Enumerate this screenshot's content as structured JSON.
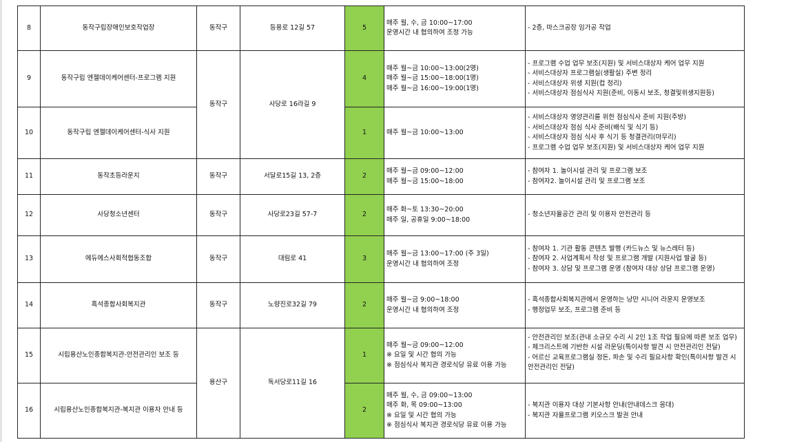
{
  "accent_color": "#92d050",
  "rows": [
    {
      "no": "8",
      "name": "동작구립장애인보호작업장",
      "district": "동작구",
      "address": "등용로 12길 57",
      "count": "5",
      "hours": [
        "매주 월, 수, 금 10:00~17:00",
        "운영시간 내 협의하여 조정 가능"
      ],
      "tasks": [
        "- 2층, 마스크공장 임가공 작업"
      ]
    },
    {
      "no": "9",
      "name": "동작구립 엔젤데이케어센터-프로그램 지원",
      "district": "동작구",
      "address": "사당로 16라길 9",
      "count": "4",
      "hours": [
        "매주 월~금 10:00~13:00(2명)",
        "매주 월~금 15:00~18:00(1명)",
        "매주 월~금 16:00~19:00(1명)"
      ],
      "tasks": [
        "- 프로그램 수업 업무 보조(지원) 및 서비스대상자 케어 업무 지원",
        "- 서비스대상자 프로그램실(생활실) 주변 정리",
        "- 서비스대상자 위생 지원(컵 정리)",
        "- 서비스대상자 점심식사 지원(준비, 이동시 보조, 청결및위생지원등)"
      ]
    },
    {
      "no": "10",
      "name": "동작구립 엔젤데이케어센터-식사 지원",
      "count": "1",
      "hours": [
        "매주 월~금 10:00~13:00"
      ],
      "tasks": [
        "- 서비스대상자 영양관리를 위한 점심식사 준비 지원(주방)",
        "- 서비스대상자 점심 식사 준비(배식 및  식기 등)",
        "- 서비스대상자 점심 식사 후 식기 등 청결관리(마무리)",
        "- 프로그램 수업 업무 보조(지원) 및 서비스대상자 케어 업무 지원"
      ]
    },
    {
      "no": "11",
      "name": "동작초등라운지",
      "district": "동작구",
      "address": "서달로15길 13, 2층",
      "count": "2",
      "hours": [
        "매주 월~금 09:00~12:00",
        "매주 월~금 15:00~18:00"
      ],
      "tasks": [
        "- 참여자 1. 놀이시설 관리 및  프로그램 보조",
        "- 참여자2. 놀이시설 관리 및 프로그램 보조"
      ]
    },
    {
      "no": "12",
      "name": "사당청소년센터",
      "district": "동작구",
      "address": "사당로23길 57-7",
      "count": "2",
      "hours": [
        "매주 화~토 13:30~20:00",
        "매주 일, 공휴일 9:00~18:00"
      ],
      "tasks": [
        "- 청소년자율공간 관리 및 이용자 안전관리 등"
      ]
    },
    {
      "no": "13",
      "name": "에듀에스사회적협동조합",
      "district": "동작구",
      "address": "대림로 41",
      "count": "3",
      "hours": [
        "매주 월~금 13:00~17:00 (주 3일)",
        "운영시간 내 협의하여 조정"
      ],
      "tasks": [
        " - 참여자 1. 기관 활동 콘텐츠 발행 (카드뉴스 및 뉴스레터 등)",
        " - 참여자 2. 사업계획서 작성 및 프로그램 개발 (지원사업 발굴 등)",
        " - 참여자 3. 상담 및 프로그램 운영 (참여자 대상 상담 프로그램 운영)"
      ]
    },
    {
      "no": "14",
      "name": "흑석종합사회복지관",
      "district": "동작구",
      "address": "노량진로32길 79",
      "count": "2",
      "hours": [
        "매주 월~금 9:00~18:00",
        "운영시간 내 협의하여 조정"
      ],
      "tasks": [
        "- 흑석종합사회복지관에서 운영하는 낭만 시니어 라운지 운영보조",
        "- 행정업무 보조, 프로그램 준비 등"
      ]
    },
    {
      "no": "15",
      "name": "시립용산노인종합복지관-안전관리인 보조 등",
      "district": "용산구",
      "address": "독서당로11길 16",
      "count": "1",
      "hours": [
        "매주 월~금 09:00~12:00",
        "※ 요일 및 시간 협의 가능",
        "※ 점심식사 복지관 경로식당 유료 이용 가능"
      ],
      "tasks": [
        "- 안전관리인 보조(관내 소규모 수리 시 2인 1조 작업 필요에 따른 보조 업무)",
        "- 체크리스트에 기반한 시설 라운딩(특이사항 발견 시 안전관리인 전달)",
        "- 어르신 교육프로그램실 정돈, 파손 및 수리 필요사항 확인(특이사항 발견 시 안전관리인 전달)"
      ]
    },
    {
      "no": "16",
      "name": "시립용산노인종합복지관-복지관 이용자 안내 등",
      "count": "2",
      "hours": [
        "매주 월, 수, 금 09:00~13:00",
        "매주 화, 목 09:00~13:00",
        "※ 요일 및 시간 협의 가능",
        "※ 점심식사 복지관 경로식당 유료 이용 가능"
      ],
      "tasks": [
        "- 복지관 이용자 대상 기본사항 안내(안내데스크 응대)",
        "- 복지관 자율프로그램 키오스크 발권 안내"
      ]
    }
  ]
}
